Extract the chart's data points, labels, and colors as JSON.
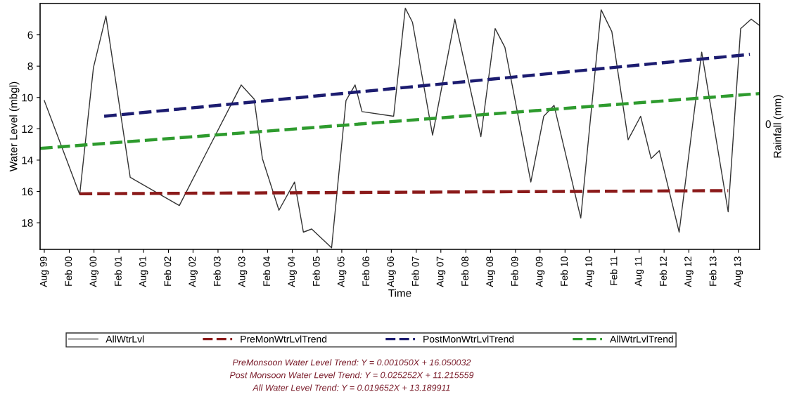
{
  "chart_data": {
    "type": "line",
    "xlabel": "Time",
    "ylabel": "Water Level (mbgl)",
    "y2label": "Rainfall (mm)",
    "xlim": [
      "1999-07-01",
      "2014-01-05"
    ],
    "xticks": [
      {
        "value": "1999-08-01",
        "label": "Aug 99"
      },
      {
        "value": "2000-02-01",
        "label": "Feb 00"
      },
      {
        "value": "2000-08-01",
        "label": "Aug 00"
      },
      {
        "value": "2001-02-01",
        "label": "Feb 01"
      },
      {
        "value": "2001-08-01",
        "label": "Aug 01"
      },
      {
        "value": "2002-02-01",
        "label": "Feb 02"
      },
      {
        "value": "2002-08-01",
        "label": "Aug 02"
      },
      {
        "value": "2003-02-01",
        "label": "Feb 03"
      },
      {
        "value": "2003-08-01",
        "label": "Aug 03"
      },
      {
        "value": "2004-02-01",
        "label": "Feb 04"
      },
      {
        "value": "2004-08-01",
        "label": "Aug 04"
      },
      {
        "value": "2005-02-01",
        "label": "Feb 05"
      },
      {
        "value": "2005-08-01",
        "label": "Aug 05"
      },
      {
        "value": "2006-02-01",
        "label": "Feb 06"
      },
      {
        "value": "2006-08-01",
        "label": "Aug 06"
      },
      {
        "value": "2007-02-01",
        "label": "Feb 07"
      },
      {
        "value": "2007-08-01",
        "label": "Aug 07"
      },
      {
        "value": "2008-02-01",
        "label": "Feb 08"
      },
      {
        "value": "2008-08-01",
        "label": "Aug 08"
      },
      {
        "value": "2009-02-01",
        "label": "Feb 09"
      },
      {
        "value": "2009-08-01",
        "label": "Aug 09"
      },
      {
        "value": "2010-02-01",
        "label": "Feb 10"
      },
      {
        "value": "2010-08-01",
        "label": "Aug 10"
      },
      {
        "value": "2011-02-01",
        "label": "Feb 11"
      },
      {
        "value": "2011-08-01",
        "label": "Aug 11"
      },
      {
        "value": "2012-02-01",
        "label": "Feb 12"
      },
      {
        "value": "2012-08-01",
        "label": "Aug 12"
      },
      {
        "value": "2013-02-01",
        "label": "Feb 13"
      },
      {
        "value": "2013-08-01",
        "label": "Aug 13"
      }
    ],
    "ylim": [
      19.7,
      4.0
    ],
    "yticks": [
      6,
      8,
      10,
      12,
      14,
      16,
      18
    ],
    "grid": false,
    "legend": "bottom",
    "marker": "none",
    "series": [
      {
        "name": "AllWtrLvl",
        "color": "#333333",
        "line_style": "solid",
        "x": [
          "1999-08-01",
          "2000-04-18",
          "2000-07-28",
          "2000-10-28",
          "2001-04-25",
          "2002-04-22",
          "2002-11-03",
          "2003-07-22",
          "2003-10-25",
          "2003-12-25",
          "2004-04-25",
          "2004-08-18",
          "2004-10-22",
          "2004-12-22",
          "2005-05-18",
          "2005-09-01",
          "2005-11-07",
          "2005-12-28",
          "2006-08-18",
          "2006-11-12",
          "2007-01-04",
          "2007-06-01",
          "2007-11-12",
          "2008-05-22",
          "2008-09-04",
          "2008-11-15",
          "2009-05-25",
          "2009-08-28",
          "2009-11-12",
          "2010-05-28",
          "2010-10-25",
          "2011-01-12",
          "2011-05-12",
          "2011-08-12",
          "2011-10-28",
          "2011-12-28",
          "2012-05-22",
          "2012-11-04",
          "2013-05-18",
          "2013-08-18",
          "2013-11-04",
          "2014-01-04"
        ],
        "values": [
          10.2,
          16.2,
          8.1,
          4.8,
          15.1,
          16.9,
          13.6,
          9.2,
          10.1,
          13.9,
          17.2,
          15.4,
          18.6,
          18.4,
          19.6,
          10.2,
          9.2,
          10.9,
          11.2,
          4.3,
          5.2,
          12.4,
          5.0,
          12.5,
          5.6,
          6.8,
          15.4,
          11.2,
          10.5,
          17.7,
          4.4,
          5.8,
          12.7,
          11.2,
          13.9,
          13.4,
          18.6,
          7.1,
          17.3,
          5.6,
          5.0,
          5.4
        ]
      },
      {
        "name": "PreMonWtrLvlTrend",
        "color": "#8b1a1a",
        "line_style": "dashed",
        "x": [
          "2000-04-18",
          "2013-05-18"
        ],
        "values": [
          16.15,
          15.95
        ]
      },
      {
        "name": "PostMonWtrLvlTrend",
        "color": "#1c1c70",
        "line_style": "dashed",
        "x": [
          "2000-10-15",
          "2013-10-25"
        ],
        "values": [
          11.2,
          7.25
        ]
      },
      {
        "name": "AllWtrLvlTrend",
        "color": "#2e9b2e",
        "line_style": "dashed",
        "x": [
          "1999-07-01",
          "2014-01-05"
        ],
        "values": [
          13.25,
          9.75
        ]
      }
    ],
    "annotations": [
      "0",
      "PreMonsoon Water Level Trend: Y = 0.001050X + 16.050032",
      "Post Monsoon Water Level Trend: Y = 0.025252X + 11.215559",
      "All Water Level Trend: Y = 0.019652X + 13.189911"
    ]
  }
}
